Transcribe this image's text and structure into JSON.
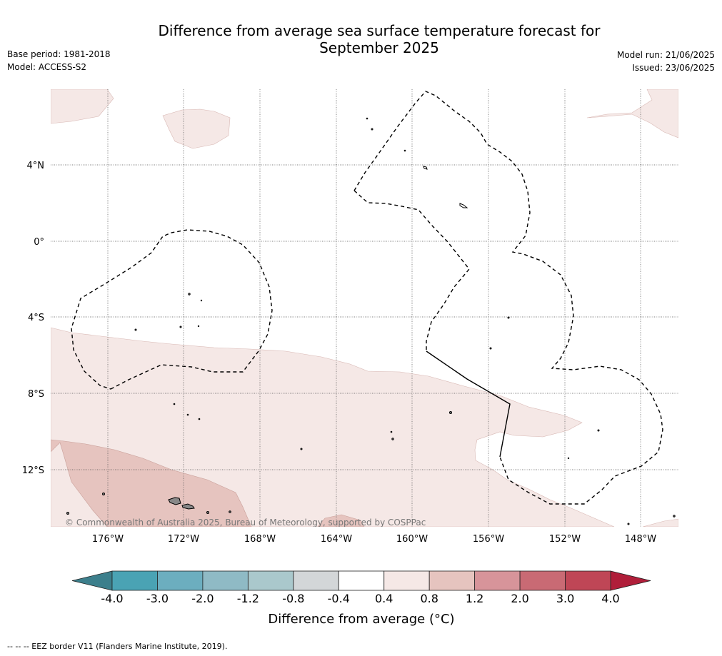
{
  "header": {
    "title_line1": "Difference from average sea surface temperature forecast for",
    "title_line2": "September 2025",
    "base_period": "Base period: 1981-2018",
    "model": "Model: ACCESS-S2",
    "model_run": "Model run: 21/06/2025",
    "issued": "Issued: 23/06/2025"
  },
  "map": {
    "lat_labels": [
      "4°N",
      "0°",
      "4°S",
      "8°S",
      "12°S"
    ],
    "lon_labels": [
      "176°W",
      "172°W",
      "168°W",
      "164°W",
      "160°W",
      "156°W",
      "152°W",
      "148°W"
    ],
    "copyright": "© Commonwealth of Australia 2025, Bureau of Meteorology, supported by COSPPac",
    "colors": {
      "anomaly_0_4_to_0_8": "#f5e8e6",
      "anomaly_0_8_to_1_2": "#e6c4bf",
      "land": "#888888",
      "eez": "#000000"
    }
  },
  "legend": {
    "labels": [
      "-4.0",
      "-3.0",
      "-2.0",
      "-1.2",
      "-0.8",
      "-0.4",
      "0.4",
      "0.8",
      "1.2",
      "2.0",
      "3.0",
      "4.0"
    ],
    "colors": [
      "#4aa3b4",
      "#6caebf",
      "#8fbac5",
      "#aac8cc",
      "#d3d6d8",
      "#ffffff",
      "#f5e8e6",
      "#e6c4bf",
      "#d7949a",
      "#c96a74",
      "#bf4656"
    ],
    "under_color": "#3c7f8c",
    "over_color": "#b01e3a",
    "title": "Difference from average (°C)"
  },
  "footnote": "--  --  -- EEZ border V11 (Flanders Marine Institute, 2019)."
}
